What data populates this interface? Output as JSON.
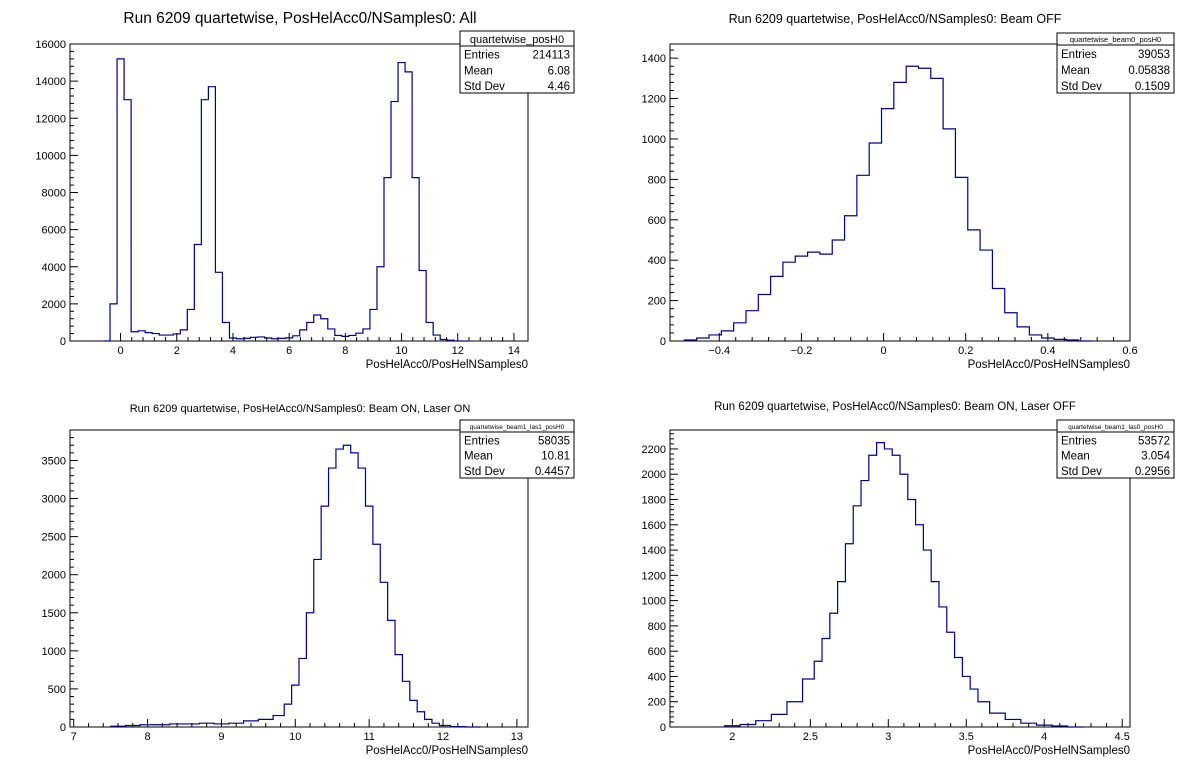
{
  "chart_data": [
    {
      "type": "histogram",
      "title": "Run 6209 quartetwise, PosHelAcc0/NSamples0: All",
      "xlabel": "PosHelAcc0/PosHelNSamples0",
      "ylabel": "",
      "xlim": [
        -1.8,
        14.5
      ],
      "ylim": [
        0,
        16000
      ],
      "xticks": [
        0,
        2,
        4,
        6,
        8,
        10,
        12,
        14
      ],
      "xtick_labels": [
        "0",
        "2",
        "4",
        "6",
        "8",
        "10",
        "12",
        "14"
      ],
      "yticks": [
        0,
        2000,
        4000,
        6000,
        8000,
        10000,
        12000,
        14000,
        16000
      ],
      "ytick_labels": [
        "0",
        "2000",
        "4000",
        "6000",
        "8000",
        "10000",
        "12000",
        "14000",
        "16000"
      ],
      "series": [
        {
          "x": [
            -0.5,
            -0.25,
            0,
            0.25,
            0.5,
            0.75,
            1,
            1.25,
            1.5,
            1.75,
            2,
            2.25,
            2.5,
            2.75,
            3,
            3.25,
            3.5,
            3.75,
            4,
            4.25,
            4.5,
            4.75,
            5,
            5.25,
            5.5,
            5.75,
            6,
            6.25,
            6.5,
            6.75,
            7,
            7.25,
            7.5,
            7.75,
            8,
            8.25,
            8.5,
            8.75,
            9,
            9.25,
            9.5,
            9.75,
            10,
            10.25,
            10.5,
            10.75,
            11,
            11.25,
            11.5,
            11.75,
            12,
            12.25
          ],
          "values": [
            0,
            2000,
            15200,
            13000,
            500,
            550,
            450,
            400,
            320,
            320,
            380,
            600,
            1700,
            5200,
            13000,
            13700,
            3700,
            1000,
            160,
            120,
            150,
            200,
            220,
            160,
            120,
            140,
            170,
            280,
            600,
            1000,
            1400,
            1200,
            650,
            300,
            250,
            300,
            420,
            650,
            1700,
            4000,
            8800,
            12900,
            15000,
            14500,
            8800,
            3800,
            1000,
            320,
            80,
            40,
            0,
            0
          ]
        }
      ],
      "stats": {
        "name": "quartetwise_posH0",
        "rows": [
          {
            "label": "Entries",
            "value": "214113"
          },
          {
            "label": "Mean",
            "value": "6.08"
          },
          {
            "label": "Std Dev",
            "value": "4.46"
          }
        ]
      },
      "grid": false,
      "legend_placement": "top-right"
    },
    {
      "type": "histogram",
      "title": "Run 6209 quartetwise, PosHelAcc0/NSamples0: Beam OFF",
      "xlabel": "PosHelAcc0/PosHelNSamples0",
      "ylabel": "",
      "xlim": [
        -0.52,
        0.6
      ],
      "ylim": [
        0,
        1470
      ],
      "xticks": [
        -0.4,
        -0.2,
        0,
        0.2,
        0.4,
        0.6
      ],
      "xtick_labels": [
        "−0.4",
        "−0.2",
        "0",
        "0.2",
        "0.4",
        "0.6"
      ],
      "yticks": [
        0,
        200,
        400,
        600,
        800,
        1000,
        1200,
        1400
      ],
      "ytick_labels": [
        "0",
        "200",
        "400",
        "600",
        "800",
        "1000",
        "1200",
        "1400"
      ],
      "series": [
        {
          "x": [
            -0.47,
            -0.44,
            -0.41,
            -0.38,
            -0.35,
            -0.32,
            -0.29,
            -0.26,
            -0.23,
            -0.2,
            -0.17,
            -0.14,
            -0.11,
            -0.08,
            -0.05,
            -0.02,
            0.01,
            0.04,
            0.07,
            0.1,
            0.13,
            0.16,
            0.19,
            0.22,
            0.25,
            0.28,
            0.31,
            0.34,
            0.37,
            0.4,
            0.43,
            0.46,
            0.49
          ],
          "values": [
            5,
            15,
            30,
            50,
            90,
            150,
            230,
            320,
            390,
            420,
            440,
            430,
            500,
            620,
            820,
            980,
            1150,
            1280,
            1360,
            1350,
            1300,
            1050,
            810,
            550,
            450,
            260,
            140,
            70,
            30,
            15,
            8,
            5,
            0
          ]
        }
      ],
      "stats": {
        "name": "quartetwise_beam0_posH0",
        "rows": [
          {
            "label": "Entries",
            "value": "39053"
          },
          {
            "label": "Mean",
            "value": "0.05838"
          },
          {
            "label": "Std Dev",
            "value": "0.1509"
          }
        ]
      },
      "grid": false,
      "legend_placement": "top-right"
    },
    {
      "type": "histogram",
      "title": "Run 6209 quartetwise, PosHelAcc0/NSamples0: Beam ON, Laser ON",
      "xlabel": "PosHelAcc0/PosHelNSamples0",
      "ylabel": "",
      "xlim": [
        6.95,
        13.15
      ],
      "ylim": [
        0,
        3900
      ],
      "xticks": [
        7,
        8,
        9,
        10,
        11,
        12,
        13
      ],
      "xtick_labels": [
        "7",
        "8",
        "9",
        "10",
        "11",
        "12",
        "13"
      ],
      "yticks": [
        0,
        500,
        1000,
        1500,
        2000,
        2500,
        3000,
        3500
      ],
      "ytick_labels": [
        "0",
        "500",
        "1000",
        "1500",
        "2000",
        "2500",
        "3000",
        "3500"
      ],
      "series": [
        {
          "x": [
            7.6,
            7.8,
            8,
            8.2,
            8.4,
            8.6,
            8.8,
            9,
            9.2,
            9.4,
            9.6,
            9.8,
            9.9,
            10,
            10.1,
            10.2,
            10.3,
            10.4,
            10.5,
            10.6,
            10.7,
            10.8,
            10.9,
            11,
            11.1,
            11.2,
            11.3,
            11.4,
            11.5,
            11.6,
            11.7,
            11.8,
            11.9,
            12,
            12.2,
            12.4
          ],
          "values": [
            10,
            20,
            30,
            30,
            40,
            40,
            50,
            40,
            50,
            80,
            100,
            150,
            300,
            550,
            900,
            1500,
            2200,
            2900,
            3400,
            3650,
            3700,
            3600,
            3400,
            2900,
            2400,
            1900,
            1400,
            950,
            600,
            350,
            200,
            100,
            50,
            20,
            5,
            0
          ]
        }
      ],
      "stats": {
        "name": "quartetwise_beam1_las1_posH0",
        "rows": [
          {
            "label": "Entries",
            "value": "58035"
          },
          {
            "label": "Mean",
            "value": "10.81"
          },
          {
            "label": "Std Dev",
            "value": "0.4457"
          }
        ]
      },
      "grid": false,
      "legend_placement": "top-right"
    },
    {
      "type": "histogram",
      "title": "Run 6209 quartetwise, PosHelAcc0/NSamples0: Beam ON, Laser OFF",
      "xlabel": "PosHelAcc0/PosHelNSamples0",
      "ylabel": "",
      "xlim": [
        1.6,
        4.55
      ],
      "ylim": [
        0,
        2350
      ],
      "xticks": [
        2,
        2.5,
        3,
        3.5,
        4,
        4.5
      ],
      "xtick_labels": [
        "2",
        "2.5",
        "3",
        "3.5",
        "4",
        "4.5"
      ],
      "yticks": [
        0,
        200,
        400,
        600,
        800,
        1000,
        1200,
        1400,
        1600,
        1800,
        2000,
        2200
      ],
      "ytick_labels": [
        "0",
        "200",
        "400",
        "600",
        "800",
        "1000",
        "1200",
        "1400",
        "1600",
        "1800",
        "2000",
        "2200"
      ],
      "series": [
        {
          "x": [
            2,
            2.1,
            2.2,
            2.3,
            2.4,
            2.5,
            2.55,
            2.6,
            2.65,
            2.7,
            2.75,
            2.8,
            2.85,
            2.9,
            2.95,
            3,
            3.05,
            3.1,
            3.15,
            3.2,
            3.25,
            3.3,
            3.35,
            3.4,
            3.45,
            3.5,
            3.55,
            3.6,
            3.7,
            3.8,
            3.9,
            4,
            4.1,
            4.2
          ],
          "values": [
            10,
            20,
            50,
            100,
            200,
            380,
            520,
            700,
            900,
            1150,
            1450,
            1750,
            1950,
            2150,
            2250,
            2200,
            2150,
            2000,
            1800,
            1600,
            1400,
            1150,
            950,
            750,
            550,
            400,
            300,
            200,
            110,
            60,
            30,
            15,
            8,
            0
          ]
        }
      ],
      "stats": {
        "name": "quartetwise_beam1_las0_posH0",
        "rows": [
          {
            "label": "Entries",
            "value": "53572"
          },
          {
            "label": "Mean",
            "value": "3.054"
          },
          {
            "label": "Std Dev",
            "value": "0.2956"
          }
        ]
      },
      "grid": false,
      "legend_placement": "top-right"
    }
  ]
}
